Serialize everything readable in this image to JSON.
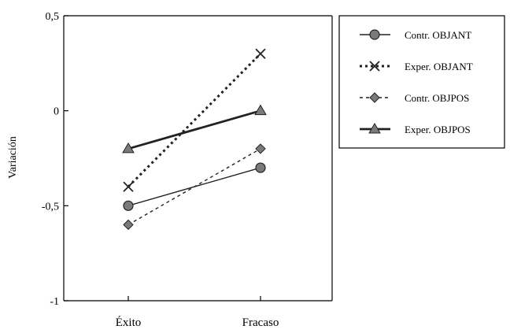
{
  "chart_data": {
    "type": "line",
    "title": "",
    "xlabel": "",
    "ylabel": "Variación",
    "categories": [
      "Éxito",
      "Fracaso"
    ],
    "ylim": [
      -1,
      0.5
    ],
    "yticks": [
      0.5,
      0,
      -0.5,
      -1
    ],
    "ytick_labels": [
      "0,5",
      "0",
      "-0,5",
      "-1"
    ],
    "grid": false,
    "legend_position": "right",
    "series": [
      {
        "name": "Contr. OBJANT",
        "values": [
          -0.5,
          -0.3
        ],
        "marker": "circle",
        "line": "solid-thin"
      },
      {
        "name": "Exper. OBJANT",
        "values": [
          -0.4,
          0.3
        ],
        "marker": "x",
        "line": "dotted-thick"
      },
      {
        "name": "Contr. OBJPOS",
        "values": [
          -0.6,
          -0.2
        ],
        "marker": "diamond",
        "line": "dashed-thin"
      },
      {
        "name": "Exper. OBJPOS",
        "values": [
          -0.2,
          0.0
        ],
        "marker": "triangle",
        "line": "solid-thick"
      }
    ],
    "colors": {
      "line": "#222222",
      "marker_fill": "#7a7a7a",
      "axis": "#000000"
    }
  }
}
